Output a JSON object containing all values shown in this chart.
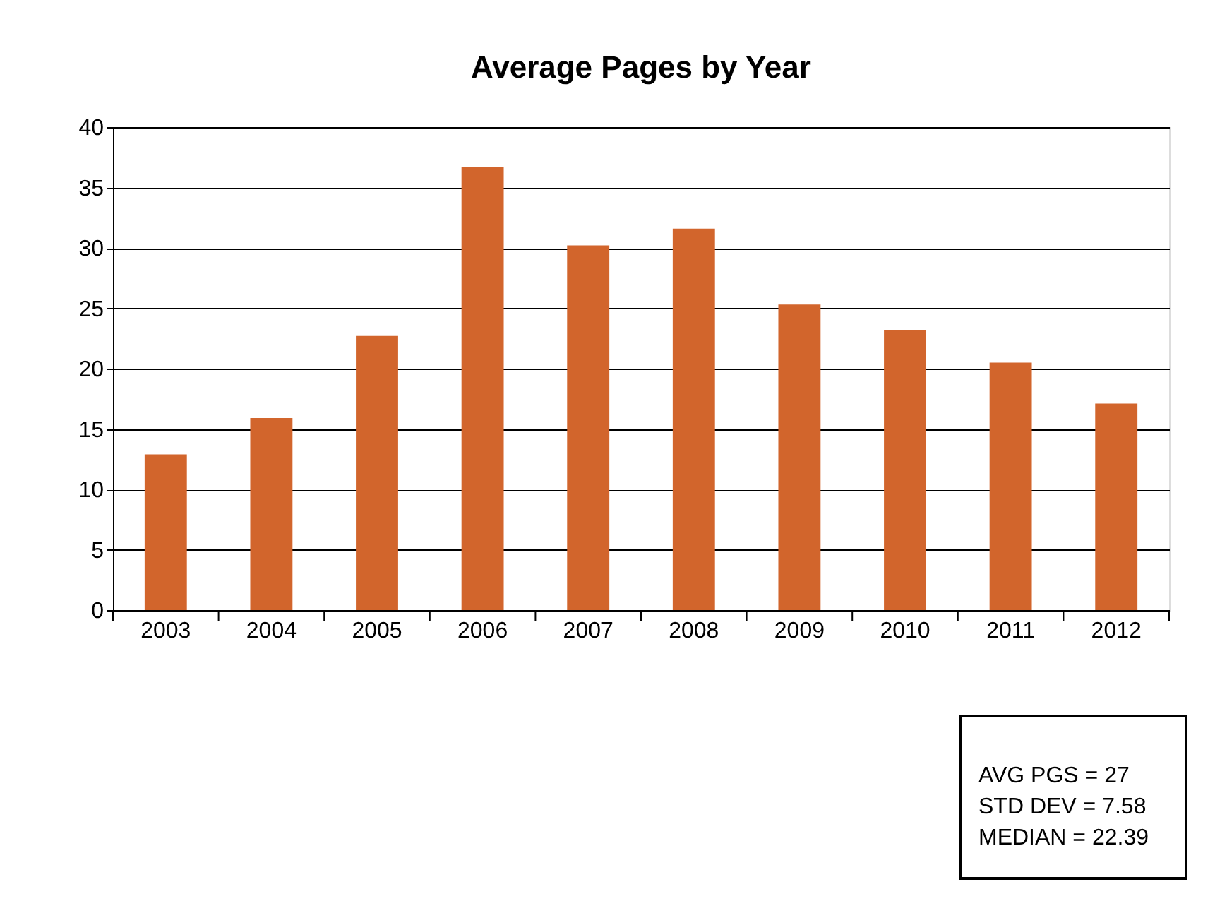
{
  "chart_data": {
    "type": "bar",
    "title": "Average Pages by Year",
    "categories": [
      "2003",
      "2004",
      "2005",
      "2006",
      "2007",
      "2008",
      "2009",
      "2010",
      "2011",
      "2012"
    ],
    "values": [
      12.9,
      15.9,
      22.7,
      36.7,
      30.2,
      31.6,
      25.3,
      23.2,
      20.5,
      17.1
    ],
    "color": "#d2652c",
    "ylim": [
      0,
      40
    ],
    "yticks": [
      0,
      5,
      10,
      15,
      20,
      25,
      30,
      35,
      40
    ],
    "grid": "y",
    "annotations": [
      "AVG PGS = 27",
      "STD DEV = 7.58",
      "MEDIAN = 22.39"
    ]
  }
}
